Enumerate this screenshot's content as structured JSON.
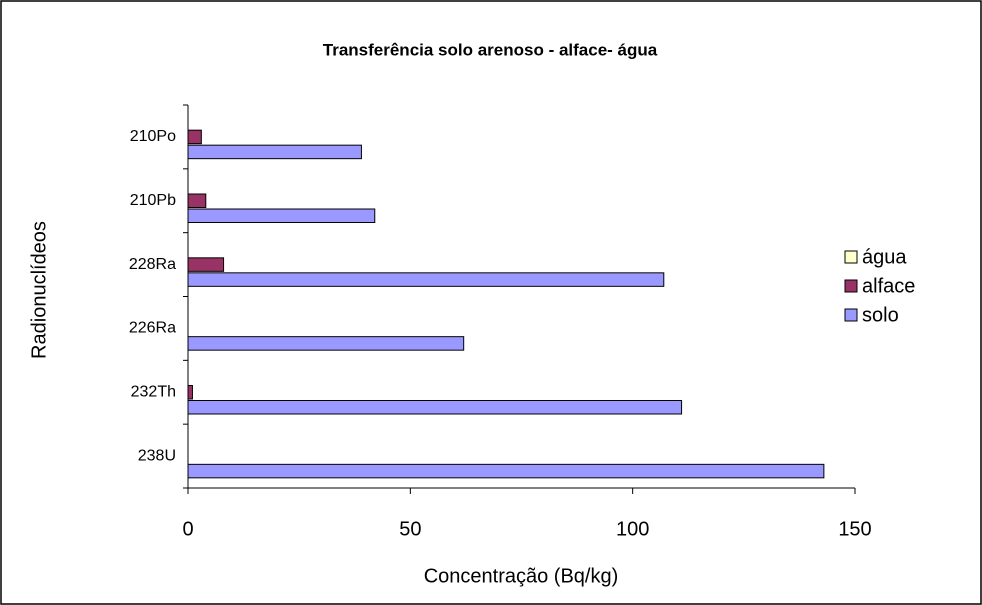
{
  "chart_data": {
    "type": "hbar",
    "title": "Transferência solo arenoso - alface- água",
    "xlabel": "Concentração (Bq/kg)",
    "ylabel": "Radionuclídeos",
    "categories": [
      "238U",
      "232Th",
      "226Ra",
      "228Ra",
      "210Pb",
      "210Po"
    ],
    "series": [
      {
        "name": "solo",
        "color": "#9999ff",
        "values": [
          143,
          111,
          62,
          107,
          42,
          39
        ]
      },
      {
        "name": "alface",
        "color": "#993366",
        "values": [
          0,
          1,
          0,
          8,
          4,
          3
        ]
      },
      {
        "name": "água",
        "color": "#ffffcc",
        "values": [
          0,
          0,
          0,
          0,
          0,
          0
        ]
      }
    ],
    "xlim": [
      0,
      150
    ],
    "xticks": [
      0,
      50,
      100,
      150
    ],
    "legend": "right"
  }
}
